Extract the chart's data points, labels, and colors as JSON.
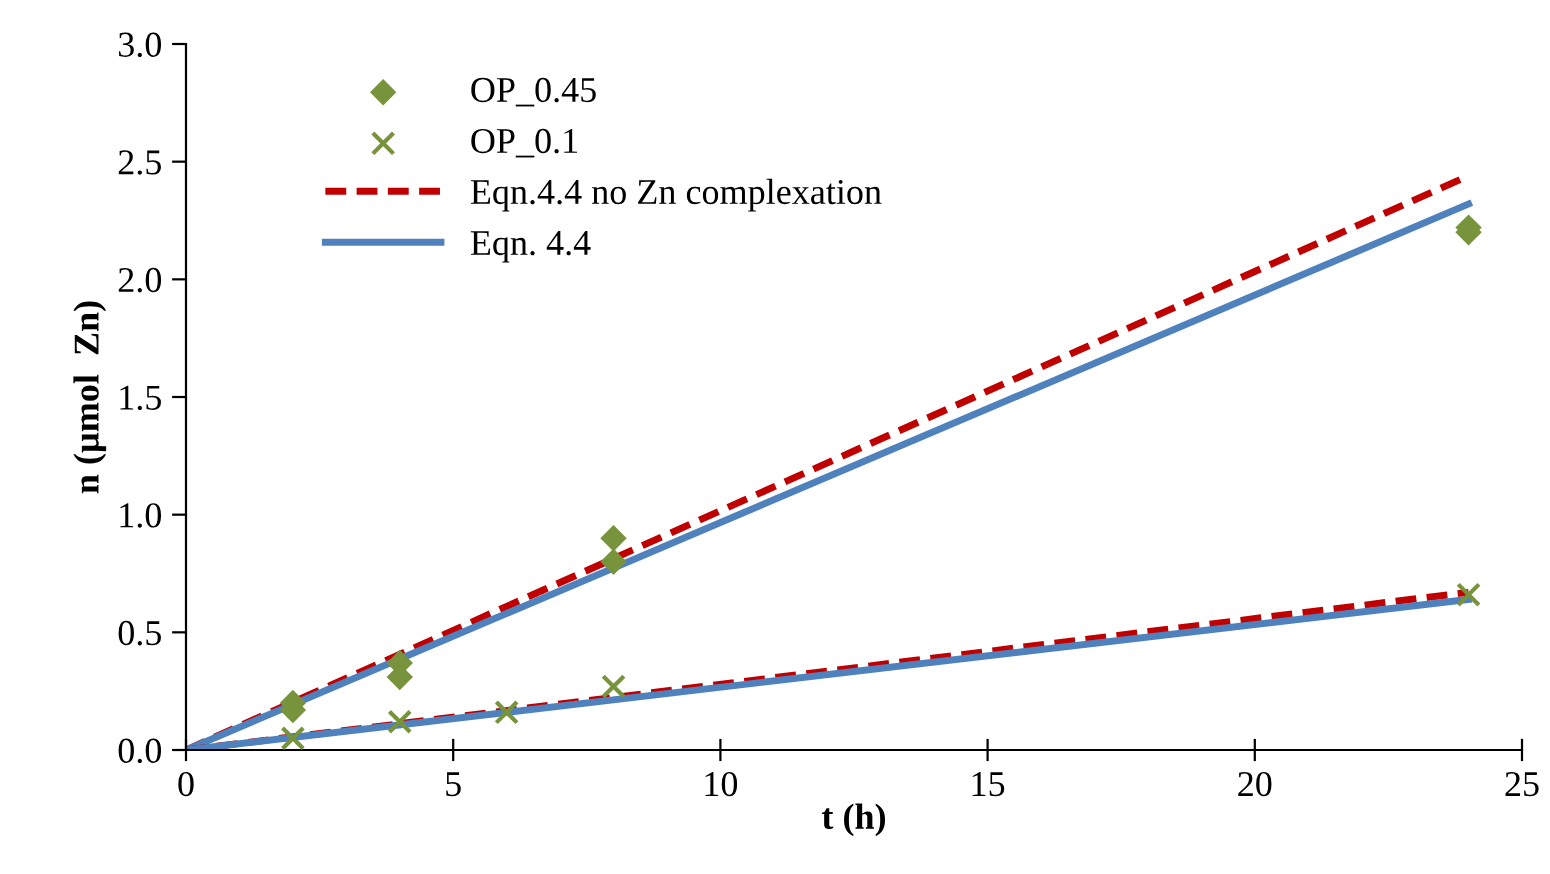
{
  "chart_data": {
    "type": "scatter",
    "xlabel": "t (h)",
    "ylabel": "n (µmol  Zn)",
    "xlim": [
      0,
      25
    ],
    "xticks": [
      0,
      5,
      10,
      15,
      20,
      25
    ],
    "ylim": [
      0,
      3
    ],
    "yticks": [
      {
        "value": 0,
        "label": "0.0"
      },
      {
        "value": 0.5,
        "label": "0.5"
      },
      {
        "value": 1,
        "label": "1.0"
      },
      {
        "value": 1.5,
        "label": "1.5"
      },
      {
        "value": 2,
        "label": "2.0"
      },
      {
        "value": 2.5,
        "label": "2.5"
      },
      {
        "value": 3,
        "label": "3.0"
      }
    ],
    "grid": false,
    "legend": "top left",
    "series": [
      {
        "name": "OP_0.45",
        "marker": "diamond",
        "color": "#77933c",
        "x": [
          2,
          2,
          4,
          4,
          8,
          8,
          24,
          24
        ],
        "values": [
          0.2,
          0.17,
          0.37,
          0.31,
          0.9,
          0.8,
          2.22,
          2.2
        ]
      },
      {
        "name": "OP_0.1",
        "marker": "cross",
        "color": "#77933c",
        "x": [
          2,
          4,
          6,
          8,
          24
        ],
        "values": [
          0.05,
          0.12,
          0.16,
          0.27,
          0.66
        ]
      },
      {
        "name": "Eqn.4.4 no Zn complexation",
        "type": "line",
        "line_style": "dashed",
        "color": "#c00000",
        "x": [
          0,
          24
        ],
        "values": [
          0,
          2.44
        ]
      },
      {
        "name": "Eqn. 4.4",
        "type": "line",
        "line_style": "solid",
        "color": "#4f81bd",
        "x": [
          0,
          24
        ],
        "values": [
          0,
          2.32
        ]
      },
      {
        "type": "line",
        "line_style": "dashed",
        "color": "#c00000",
        "x": [
          0,
          24
        ],
        "values": [
          0,
          0.67
        ]
      },
      {
        "type": "line",
        "line_style": "solid",
        "color": "#4f81bd",
        "x": [
          0,
          24
        ],
        "values": [
          0,
          0.64
        ]
      }
    ]
  }
}
